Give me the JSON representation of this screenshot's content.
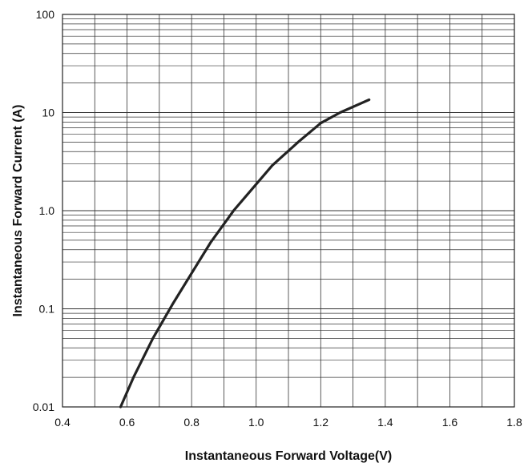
{
  "chart_data": {
    "type": "line",
    "title": "",
    "xlabel": "Instantaneous Forward Voltage(V)",
    "ylabel": "Instantaneous Forward Current (A)",
    "xlim": [
      0.4,
      1.8
    ],
    "ylim": [
      0.01,
      100
    ],
    "y_scale": "log",
    "grid": true,
    "x_ticks": [
      0.4,
      0.6,
      0.8,
      1.0,
      1.2,
      1.4,
      1.6,
      1.8
    ],
    "x_tick_labels": [
      "0.4",
      "0.6",
      "0.8",
      "1.0",
      "1.2",
      "1.4",
      "1.6",
      "1.8"
    ],
    "y_ticks": [
      0.01,
      0.1,
      1,
      10,
      100
    ],
    "y_tick_labels": [
      "0.01",
      "0.1",
      "1.0",
      "10",
      "100"
    ],
    "series": [
      {
        "color": "#222222",
        "x": [
          0.58,
          0.62,
          0.68,
          0.74,
          0.8,
          0.86,
          0.93,
          1.05,
          1.13,
          1.2,
          1.26,
          1.35
        ],
        "y": [
          0.01,
          0.02,
          0.05,
          0.11,
          0.23,
          0.48,
          1.0,
          2.9,
          5.0,
          7.8,
          10.0,
          13.5
        ]
      }
    ]
  }
}
